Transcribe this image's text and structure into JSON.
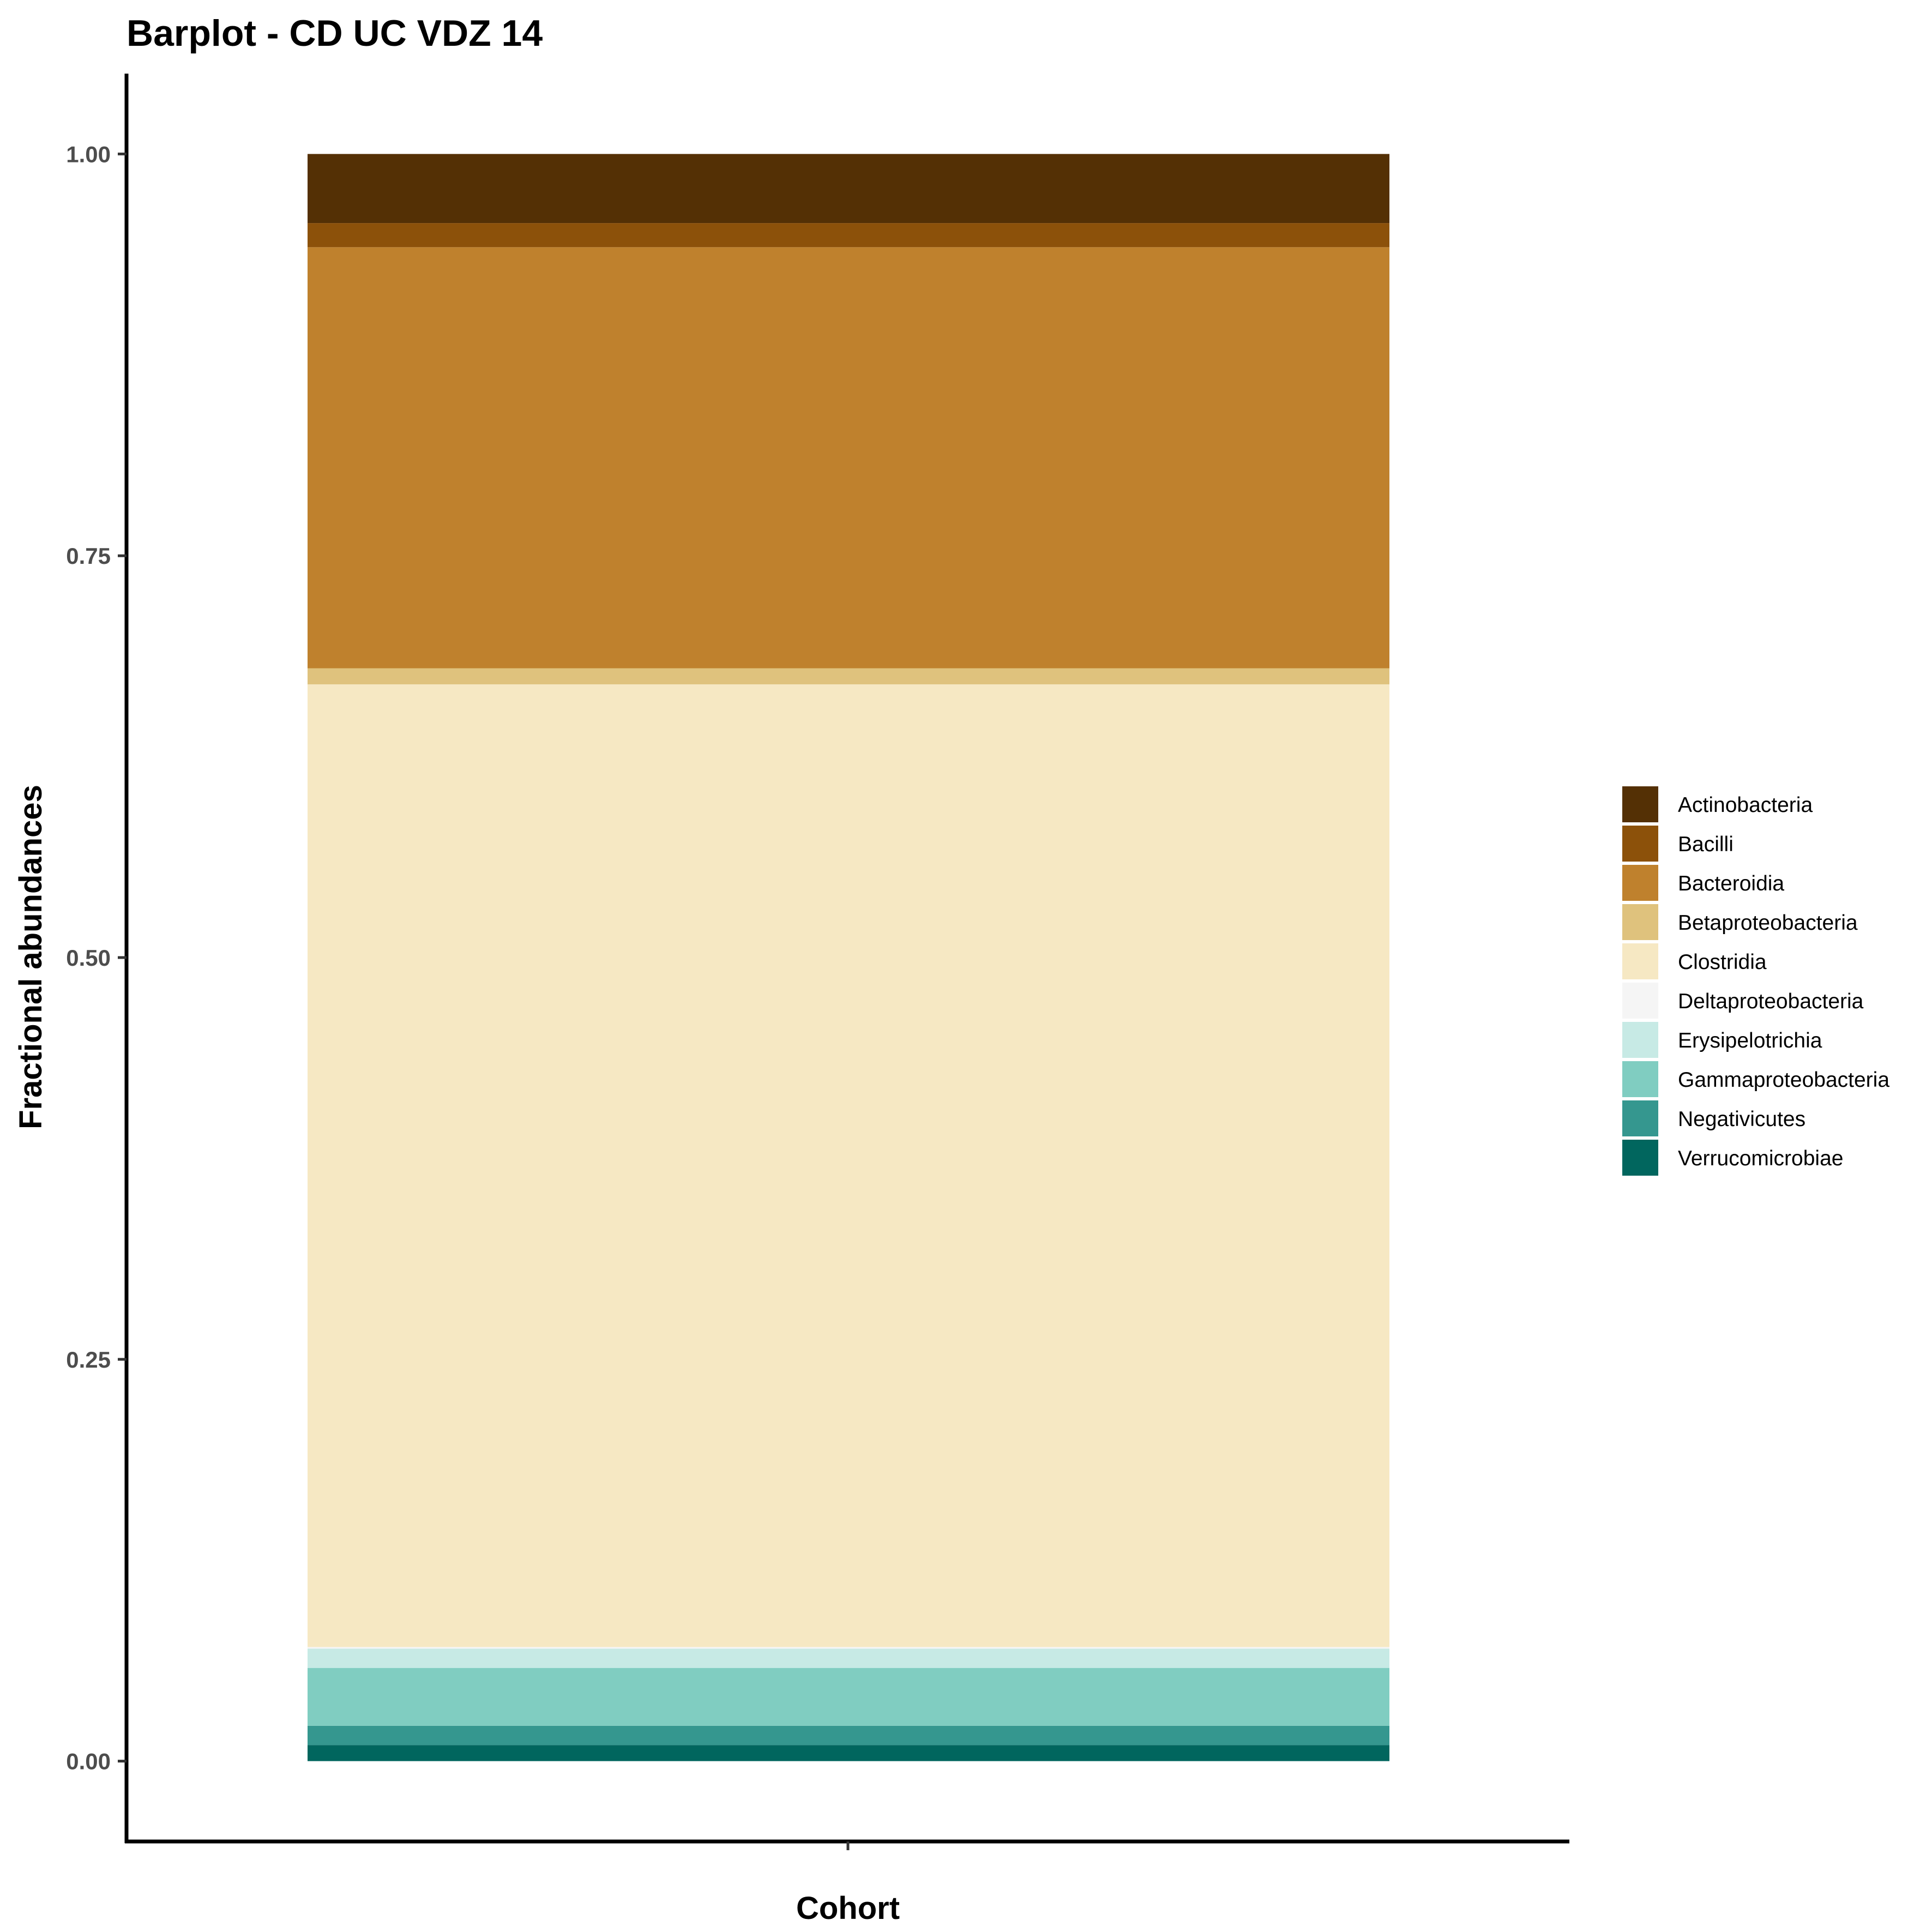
{
  "chart_data": {
    "type": "bar",
    "stacked": true,
    "title": "Barplot - CD UC VDZ 14",
    "xlabel": "Cohort",
    "ylabel": "Fractional abundances",
    "categories": [
      ""
    ],
    "ylim": [
      -0.05,
      1.05
    ],
    "yticks": [
      "0.00",
      "0.25",
      "0.50",
      "0.75",
      "1.00"
    ],
    "grid": false,
    "legend_position": "right",
    "series": [
      {
        "name": "Verrucomicrobiae",
        "color": "#01665E",
        "values": [
          0.01
        ]
      },
      {
        "name": "Negativicutes",
        "color": "#35978F",
        "values": [
          0.012
        ]
      },
      {
        "name": "Gammaproteobacteria",
        "color": "#80CDC1",
        "values": [
          0.036
        ]
      },
      {
        "name": "Erysipelotrichia",
        "color": "#C7EAE5",
        "values": [
          0.012
        ]
      },
      {
        "name": "Deltaproteobacteria",
        "color": "#F5F5F5",
        "values": [
          0.001
        ]
      },
      {
        "name": "Clostridia",
        "color": "#F6E8C3",
        "values": [
          0.599
        ]
      },
      {
        "name": "Betaproteobacteria",
        "color": "#DFC27D",
        "values": [
          0.01
        ]
      },
      {
        "name": "Bacteroidia",
        "color": "#BF812D",
        "values": [
          0.262
        ]
      },
      {
        "name": "Bacilli",
        "color": "#8C510A",
        "values": [
          0.015
        ]
      },
      {
        "name": "Actinobacteria",
        "color": "#543005",
        "values": [
          0.043
        ]
      }
    ],
    "legend_order": [
      "Actinobacteria",
      "Bacilli",
      "Bacteroidia",
      "Betaproteobacteria",
      "Clostridia",
      "Deltaproteobacteria",
      "Erysipelotrichia",
      "Gammaproteobacteria",
      "Negativicutes",
      "Verrucomicrobiae"
    ]
  }
}
